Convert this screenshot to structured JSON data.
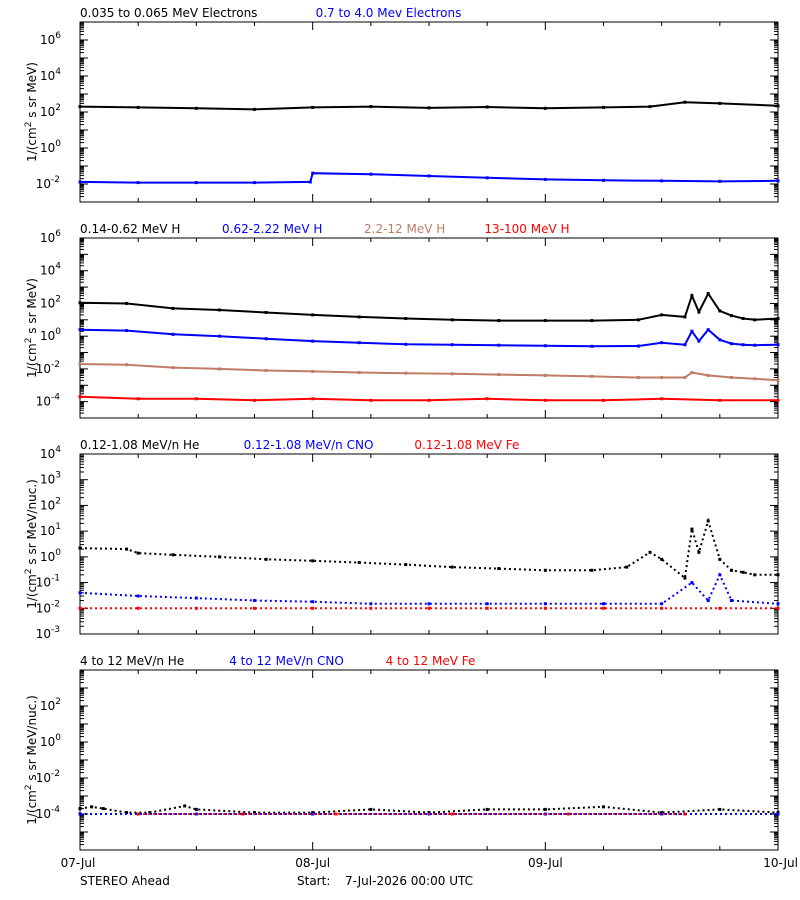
{
  "footer": {
    "spacecraft": "STEREO Ahead",
    "start_label": "Start:",
    "start_value": "7-Jul-2026 00:00 UTC"
  },
  "x_axis": {
    "labels": [
      "07-Jul",
      "08-Jul",
      "09-Jul",
      "10-Jul"
    ],
    "range_days": [
      0,
      3
    ]
  },
  "colors": {
    "black": "#000000",
    "blue": "#0000ff",
    "tan": "#c07d66",
    "red": "#ff0000"
  },
  "chart_data": [
    {
      "type": "scatter",
      "panel": "electrons",
      "ylabel_main": "1/(cm",
      "ylabel_sup": "2",
      "ylabel_rest": " s sr MeV)",
      "y_scale": "log",
      "ylim": [
        0.001,
        10000000
      ],
      "ytick_exponents": [
        -2,
        0,
        2,
        4,
        6
      ],
      "series": [
        {
          "name": "0.035 to 0.065 MeV Electrons",
          "color": "#000000",
          "x": [
            0,
            0.25,
            0.5,
            0.75,
            1.0,
            1.25,
            1.5,
            1.75,
            2.0,
            2.25,
            2.45,
            2.6,
            2.75,
            3.0
          ],
          "y": [
            200,
            180,
            160,
            140,
            180,
            200,
            170,
            190,
            160,
            180,
            200,
            350,
            300,
            220
          ]
        },
        {
          "name": "0.7 to 4.0 Mev Electrons",
          "color": "#0000ff",
          "x": [
            0,
            0.25,
            0.5,
            0.75,
            0.99,
            1.0,
            1.25,
            1.5,
            1.75,
            2.0,
            2.25,
            2.5,
            2.75,
            3.0
          ],
          "y": [
            0.013,
            0.012,
            0.012,
            0.012,
            0.013,
            0.04,
            0.035,
            0.028,
            0.022,
            0.018,
            0.016,
            0.015,
            0.014,
            0.015
          ]
        }
      ]
    },
    {
      "type": "scatter",
      "panel": "protons",
      "ylabel_main": "1/(cm",
      "ylabel_sup": "2",
      "ylabel_rest": " s sr MeV)",
      "y_scale": "log",
      "ylim": [
        1e-05,
        1000000
      ],
      "ytick_exponents": [
        -4,
        -2,
        0,
        2,
        4,
        6
      ],
      "series": [
        {
          "name": "0.14-0.62 MeV H",
          "color": "#000000",
          "x": [
            0,
            0.2,
            0.4,
            0.6,
            0.8,
            1.0,
            1.2,
            1.4,
            1.6,
            1.8,
            2.0,
            2.2,
            2.4,
            2.5,
            2.6,
            2.63,
            2.66,
            2.7,
            2.75,
            2.8,
            2.85,
            2.9,
            3.0
          ],
          "y": [
            110,
            100,
            50,
            40,
            28,
            20,
            15,
            12,
            10,
            9,
            9,
            9,
            10,
            20,
            15,
            300,
            30,
            400,
            35,
            18,
            12,
            10,
            12
          ]
        },
        {
          "name": "0.62-2.22 MeV H",
          "color": "#0000ff",
          "x": [
            0,
            0.2,
            0.4,
            0.6,
            0.8,
            1.0,
            1.2,
            1.4,
            1.6,
            1.8,
            2.0,
            2.2,
            2.4,
            2.5,
            2.6,
            2.63,
            2.66,
            2.7,
            2.75,
            2.8,
            2.85,
            2.9,
            3.0
          ],
          "y": [
            2.5,
            2.2,
            1.3,
            1.0,
            0.7,
            0.5,
            0.4,
            0.32,
            0.3,
            0.28,
            0.26,
            0.24,
            0.25,
            0.4,
            0.3,
            2.0,
            0.5,
            2.5,
            0.6,
            0.35,
            0.3,
            0.28,
            0.3
          ]
        },
        {
          "name": "2.2-12 MeV H",
          "color": "#c07d66",
          "x": [
            0,
            0.2,
            0.4,
            0.6,
            0.8,
            1.0,
            1.2,
            1.4,
            1.6,
            1.8,
            2.0,
            2.2,
            2.4,
            2.5,
            2.6,
            2.63,
            2.7,
            2.8,
            2.9,
            3.0
          ],
          "y": [
            0.02,
            0.018,
            0.012,
            0.01,
            0.008,
            0.007,
            0.006,
            0.0055,
            0.005,
            0.0045,
            0.004,
            0.0035,
            0.003,
            0.003,
            0.003,
            0.006,
            0.004,
            0.003,
            0.0025,
            0.002
          ]
        },
        {
          "name": "13-100 MeV H",
          "color": "#ff0000",
          "x": [
            0,
            0.25,
            0.5,
            0.75,
            1.0,
            1.25,
            1.5,
            1.75,
            2.0,
            2.25,
            2.5,
            2.75,
            3.0
          ],
          "y": [
            0.0002,
            0.00015,
            0.00015,
            0.00012,
            0.00015,
            0.00012,
            0.00012,
            0.00015,
            0.00012,
            0.00012,
            0.00015,
            0.00012,
            0.00012
          ]
        }
      ]
    },
    {
      "type": "scatter",
      "panel": "heavy-ions-low",
      "ylabel_main": "1/(cm",
      "ylabel_sup": "2",
      "ylabel_rest": " s sr MeV/nuc.)",
      "y_scale": "log",
      "ylim": [
        0.001,
        10000
      ],
      "ytick_exponents": [
        -3,
        -2,
        -1,
        0,
        1,
        2,
        3,
        4
      ],
      "series": [
        {
          "name": "0.12-1.08 MeV/n He",
          "color": "#000000",
          "x": [
            0,
            0.2,
            0.25,
            0.4,
            0.6,
            0.8,
            1.0,
            1.2,
            1.4,
            1.6,
            1.8,
            2.0,
            2.2,
            2.35,
            2.45,
            2.5,
            2.6,
            2.63,
            2.66,
            2.7,
            2.75,
            2.8,
            2.85,
            2.9,
            3.0
          ],
          "y": [
            2.2,
            2.0,
            1.4,
            1.2,
            1.0,
            0.8,
            0.7,
            0.6,
            0.5,
            0.4,
            0.35,
            0.3,
            0.3,
            0.4,
            1.5,
            0.8,
            0.15,
            12,
            1.5,
            25,
            0.8,
            0.3,
            0.25,
            0.2,
            0.2
          ]
        },
        {
          "name": "0.12-1.08 MeV/n CNO",
          "color": "#0000ff",
          "x": [
            0,
            0.25,
            0.5,
            0.75,
            1.0,
            1.25,
            1.5,
            1.75,
            2.0,
            2.25,
            2.5,
            2.63,
            2.7,
            2.75,
            2.8,
            3.0
          ],
          "y": [
            0.04,
            0.03,
            0.025,
            0.02,
            0.018,
            0.015,
            0.015,
            0.015,
            0.015,
            0.015,
            0.015,
            0.1,
            0.02,
            0.2,
            0.02,
            0.015
          ]
        },
        {
          "name": "0.12-1.08 MeV Fe",
          "color": "#ff0000",
          "x": [
            0,
            0.25,
            0.5,
            0.75,
            1.0,
            1.25,
            1.5,
            1.75,
            2.0,
            2.25,
            2.5,
            2.75,
            3.0
          ],
          "y": [
            0.01,
            0.01,
            0.01,
            0.01,
            0.01,
            0.01,
            0.01,
            0.01,
            0.01,
            0.01,
            0.01,
            0.01,
            0.01
          ]
        }
      ]
    },
    {
      "type": "scatter",
      "panel": "heavy-ions-high",
      "ylabel_main": "1/(cm",
      "ylabel_sup": "2",
      "ylabel_rest": " s sr MeV/nuc.)",
      "y_scale": "log",
      "ylim": [
        1e-06,
        10000
      ],
      "ytick_exponents": [
        -4,
        -2,
        0,
        2
      ],
      "series": [
        {
          "name": "4 to 12 MeV/n He",
          "color": "#000000",
          "x": [
            0.0,
            0.05,
            0.1,
            0.2,
            0.3,
            0.45,
            0.5,
            0.75,
            1.0,
            1.25,
            1.5,
            1.75,
            2.0,
            2.25,
            2.5,
            2.75,
            3.0
          ],
          "y": [
            0.0002,
            0.00025,
            0.0002,
            0.00012,
            0.00012,
            0.00028,
            0.00018,
            0.00012,
            0.00012,
            0.00018,
            0.00012,
            0.00018,
            0.00018,
            0.00025,
            0.00012,
            0.00018,
            0.00012
          ]
        },
        {
          "name": "4 to 12 MeV/n CNO",
          "color": "#0000ff",
          "x": [
            0,
            0.5,
            1.0,
            1.5,
            2.0,
            2.5,
            3.0
          ],
          "y": [
            0.0001,
            0.0001,
            0.0001,
            0.0001,
            0.0001,
            0.0001,
            0.0001
          ]
        },
        {
          "name": "4 to 12 MeV Fe",
          "color": "#ff0000",
          "x": [
            0.25,
            0.7,
            1.1,
            1.6,
            2.1,
            2.6
          ],
          "y": [
            0.0001,
            0.0001,
            0.0001,
            0.0001,
            0.0001,
            0.0001
          ]
        }
      ]
    }
  ]
}
